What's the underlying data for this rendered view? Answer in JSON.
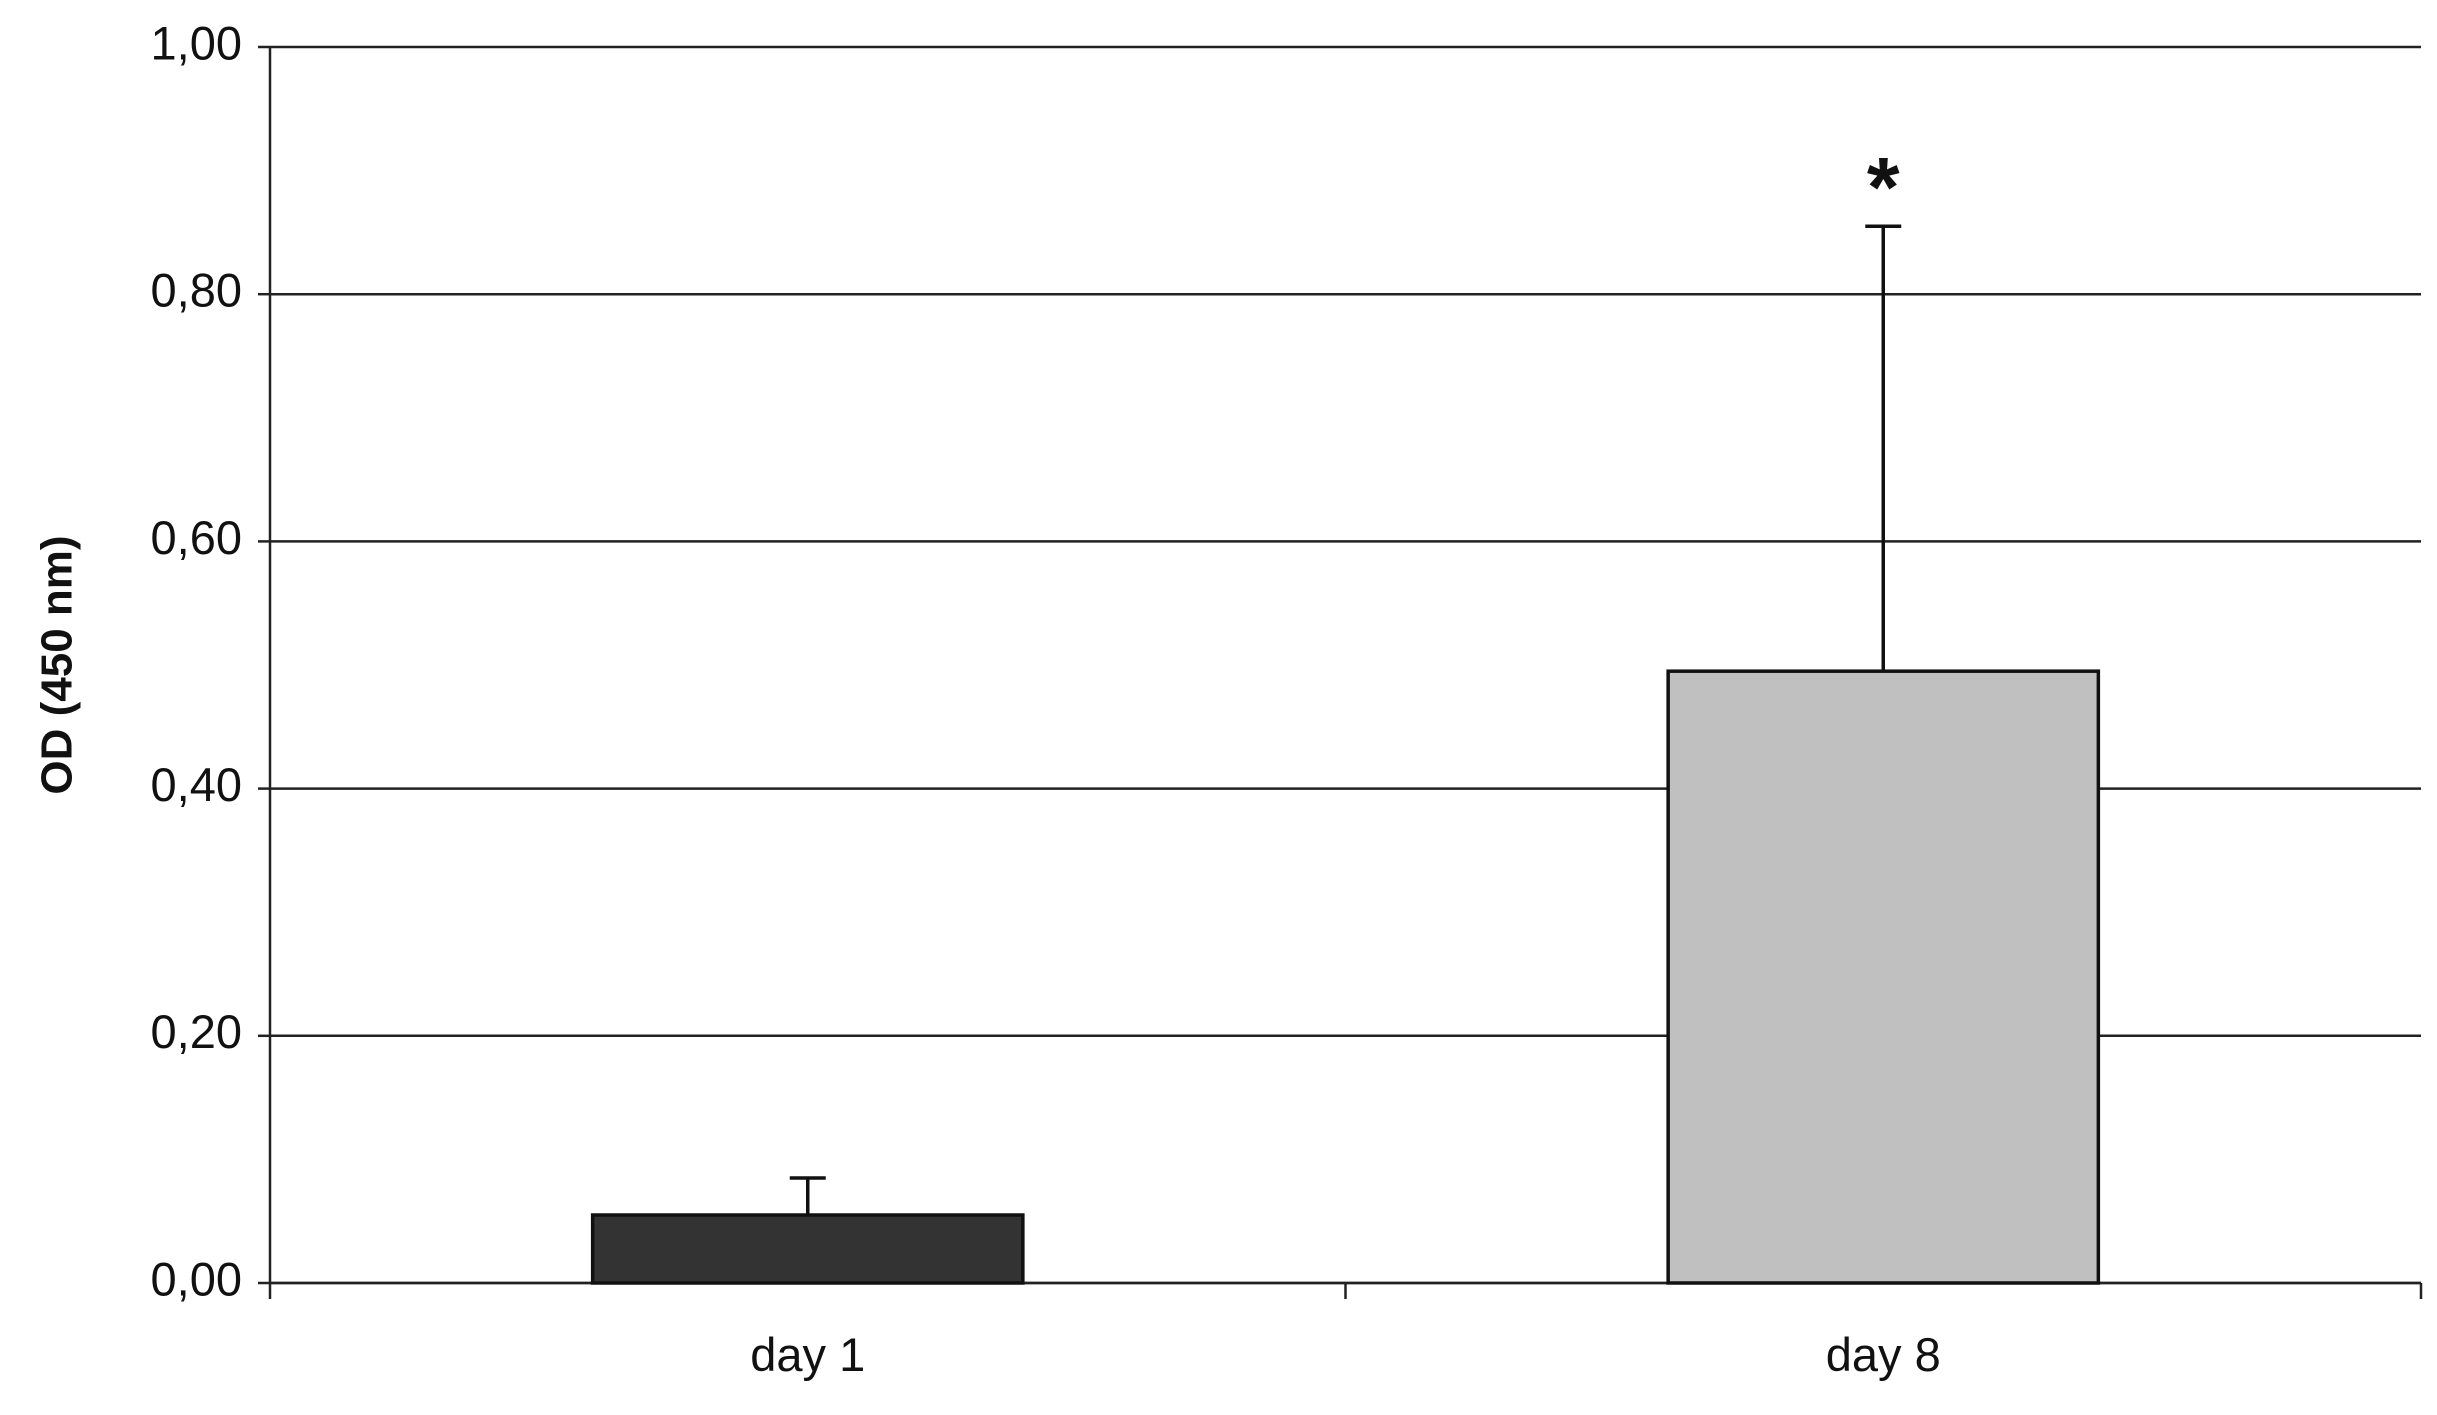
{
  "chart_data": {
    "type": "bar",
    "ylabel": "OD (450 nm)",
    "categories": [
      "day 1",
      "day 8"
    ],
    "values": [
      0.055,
      0.495
    ],
    "errors": [
      0.03,
      0.36
    ],
    "colors": [
      "#333333",
      "#c0c0c0"
    ],
    "annotations": [
      null,
      "*"
    ],
    "ylim": [
      0,
      1
    ],
    "yticks": [
      {
        "value": 0,
        "label": "0,00"
      },
      {
        "value": 0.2,
        "label": "0,20"
      },
      {
        "value": 0.4,
        "label": "0,40"
      },
      {
        "value": 0.6,
        "label": "0,60"
      },
      {
        "value": 0.8,
        "label": "0,80"
      },
      {
        "value": 1,
        "label": "1,00"
      }
    ],
    "grid": true
  }
}
